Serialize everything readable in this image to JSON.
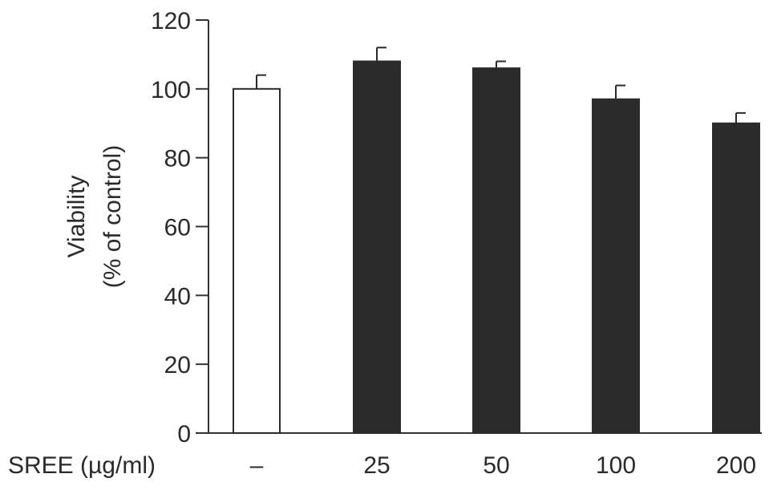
{
  "chart_data": {
    "type": "bar",
    "categories": [
      "–",
      "25",
      "50",
      "100",
      "200"
    ],
    "values": [
      100,
      108,
      106,
      97,
      90
    ],
    "errors": [
      4,
      4,
      2,
      4,
      3
    ],
    "bar_fills": [
      "#ffffff",
      "#2b2b2b",
      "#2b2b2b",
      "#2b2b2b",
      "#2b2b2b"
    ],
    "ylabel_line1": "Viability",
    "ylabel_line2": "(% of control)",
    "xlabel": "SREE (µg/ml)",
    "ylim": [
      0,
      120
    ],
    "yticks": [
      0,
      20,
      40,
      60,
      80,
      100,
      120
    ],
    "grid": false,
    "axis_color": "#333333"
  }
}
